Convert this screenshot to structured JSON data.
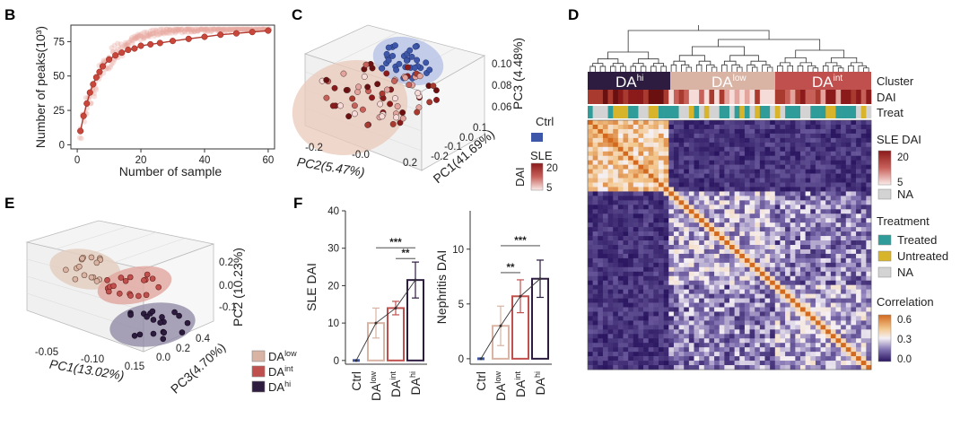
{
  "panel_labels": {
    "b": "B",
    "c": "C",
    "d": "D",
    "e": "E",
    "f": "F"
  },
  "colors": {
    "dahi": "#2d1c40",
    "daint": "#c0504d",
    "dalow": "#d9b3a3",
    "ctrl": "#3e57a8",
    "treated": "#2f9c9a",
    "untreated": "#d8b42a",
    "na": "#d3d3d3"
  },
  "chart_data": [
    {
      "type": "scatter",
      "panel": "B",
      "xlabel": "Number of sample",
      "ylabel": "Number of peaks(10³)",
      "xlim": [
        -2,
        62
      ],
      "ylim": [
        -3,
        87
      ],
      "xticks": [
        0,
        20,
        40,
        60
      ],
      "yticks": [
        0,
        25,
        50,
        75
      ],
      "x": [
        1,
        2,
        3,
        4,
        5,
        6,
        7,
        8,
        10,
        12,
        14,
        16,
        18,
        20,
        23,
        26,
        30,
        35,
        40,
        45,
        50,
        55,
        60
      ],
      "y": [
        10,
        21,
        30,
        38,
        44,
        49,
        53,
        57,
        62,
        65,
        67,
        69,
        70,
        72,
        73,
        74,
        75.5,
        77,
        78.5,
        80,
        81,
        82,
        83
      ]
    },
    {
      "type": "scatter",
      "panel": "C",
      "xlabel": "PC2(5.47%)",
      "ylabel": "PC1(41.69%)",
      "zlabel": "PC3 (4.48%)",
      "xticks": [
        "-0.2",
        "-0.0",
        "0.2"
      ],
      "yticks": [
        "-0.2",
        "-0.1",
        "0.0",
        "0.1"
      ],
      "zticks": [
        "0.06",
        "0.08",
        "0.10"
      ],
      "legend": {
        "ctrl_label": "Ctrl",
        "sle_label": "SLE",
        "dai_label": "DAI",
        "dai_ticks": [
          "20",
          "5"
        ]
      }
    },
    {
      "type": "heatmap",
      "panel": "D",
      "cluster_labels": [
        "DA",
        "DA",
        "DA"
      ],
      "cluster_sup": [
        "hi",
        "low",
        "int"
      ],
      "row_labels": [
        "Cluster",
        "DAI",
        "Treat"
      ],
      "legend": {
        "sle_title": "SLE DAI",
        "sle_ticks": [
          "20",
          "5"
        ],
        "sle_na": "NA",
        "treat_title": "Treatment",
        "treat_items": [
          "Treated",
          "Untreated",
          "NA"
        ],
        "corr_title": "Correlation",
        "corr_ticks": [
          "0.6",
          "0.3",
          "0.0"
        ]
      }
    },
    {
      "type": "scatter",
      "panel": "E",
      "xlabel": "PC1(13.02%)",
      "ylabel": "PC3(4.70%)",
      "zlabel": "PC2 (10.23%)",
      "xticks": [
        "-0.05",
        "-0.10",
        "0.15"
      ],
      "yticks": [
        "0.0",
        "0.2",
        "0.4"
      ],
      "zticks": [
        "0.2",
        "0.0",
        "-0.1"
      ],
      "legend": [
        {
          "name": "DA",
          "sup": "low"
        },
        {
          "name": "DA",
          "sup": "int"
        },
        {
          "name": "DA",
          "sup": "hi"
        }
      ]
    },
    {
      "type": "bar",
      "panel": "F",
      "categories": [
        "Ctrl",
        "DA",
        "DA",
        "DA"
      ],
      "category_sup": [
        "",
        "low",
        "int",
        "hi"
      ],
      "values": [
        0,
        10,
        14,
        21.5
      ],
      "errors": [
        0,
        4,
        1.8,
        4.8
      ],
      "ylabel": "SLE DAI",
      "ylim": [
        -1,
        40
      ],
      "yticks": [
        0,
        10,
        20,
        30,
        40
      ],
      "significance": [
        "***",
        "**"
      ]
    },
    {
      "type": "bar",
      "panel": "F",
      "categories": [
        "Ctrl",
        "DA",
        "DA",
        "DA"
      ],
      "category_sup": [
        "",
        "low",
        "int",
        "hi"
      ],
      "values": [
        0,
        3,
        5.7,
        7.3
      ],
      "errors": [
        0,
        1.8,
        1.5,
        1.7
      ],
      "ylabel": "Nephritis DAI",
      "ylim": [
        -0.5,
        13.5
      ],
      "yticks": [
        0,
        5,
        10
      ],
      "significance": [
        "***",
        "**"
      ]
    }
  ]
}
